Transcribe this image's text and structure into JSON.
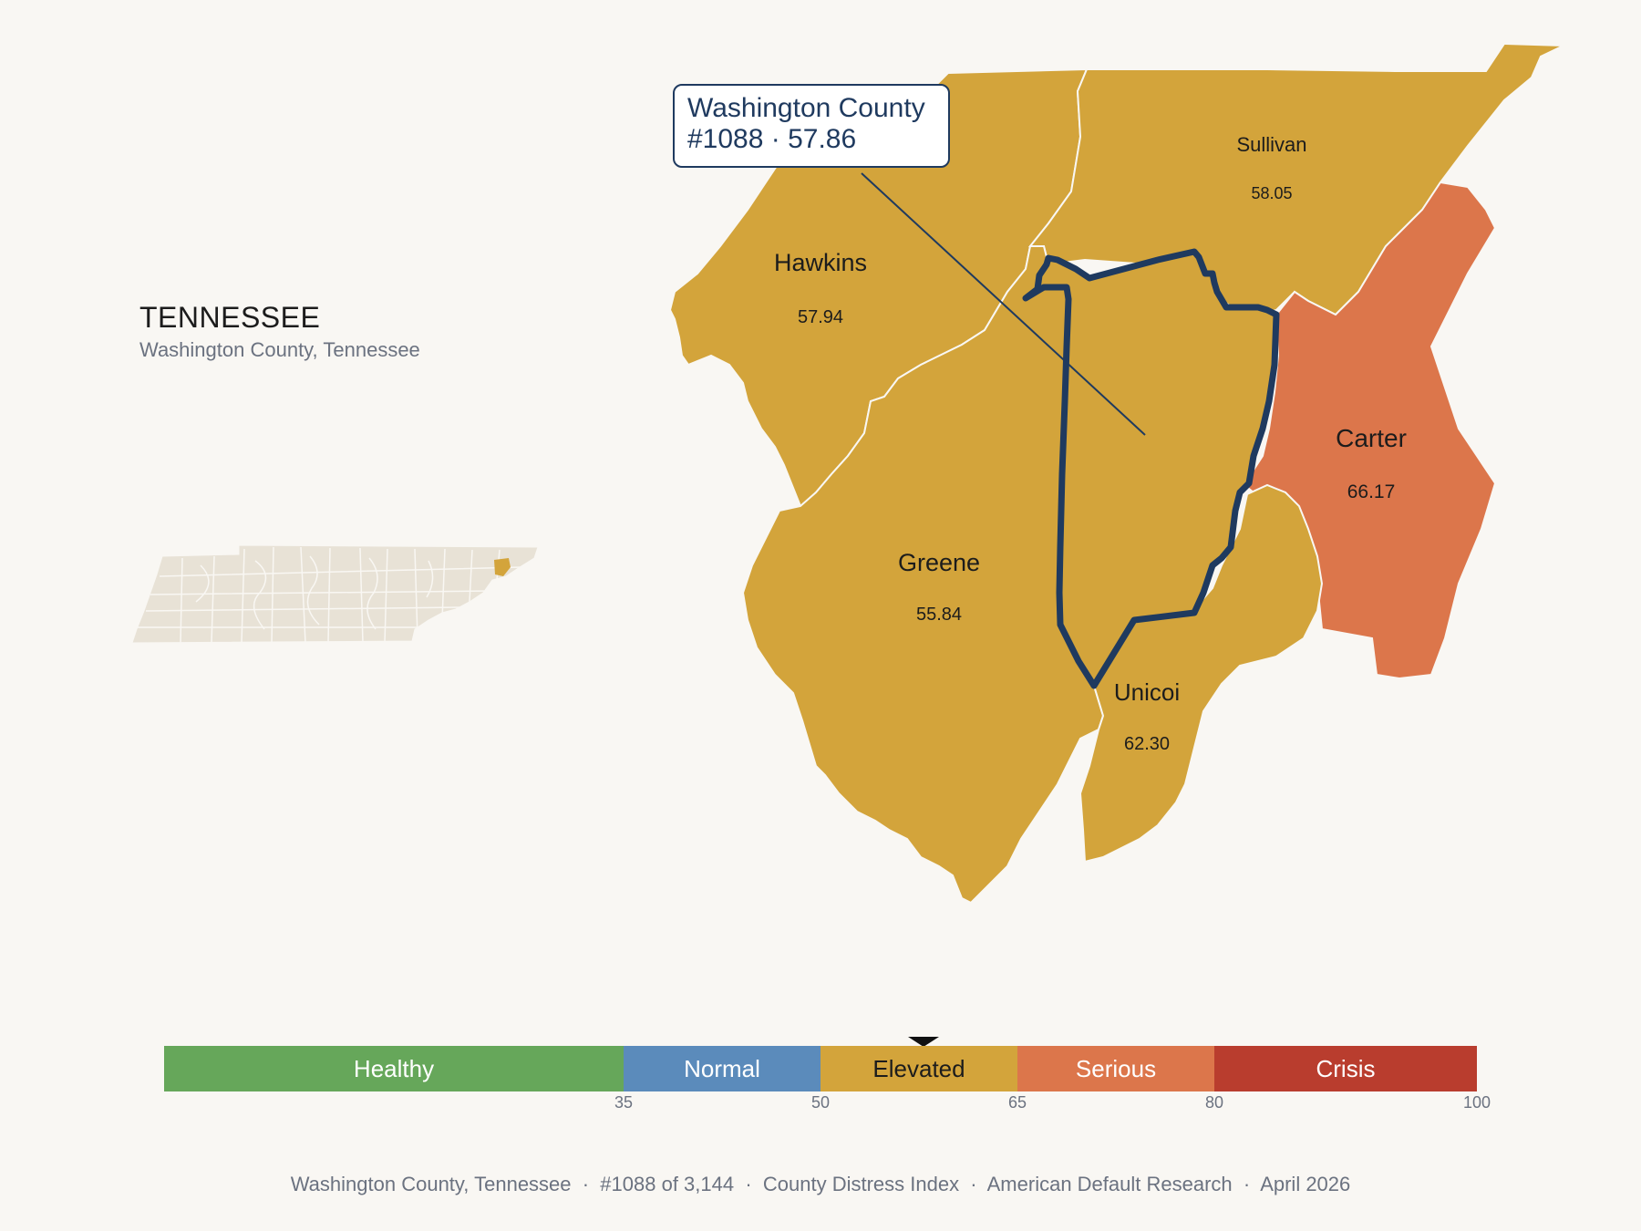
{
  "header": {
    "state": "TENNESSEE",
    "subtitle": "Washington County, Tennessee"
  },
  "callout": {
    "line1": "Washington County",
    "line2": "#1088 · 57.86"
  },
  "counties": [
    {
      "id": "hawkins",
      "name": "Hawkins",
      "score": "57.94",
      "tier": "Elevated"
    },
    {
      "id": "sullivan",
      "name": "Sullivan",
      "score": "58.05",
      "tier": "Elevated"
    },
    {
      "id": "greene",
      "name": "Greene",
      "score": "55.84",
      "tier": "Elevated"
    },
    {
      "id": "unicoi",
      "name": "Unicoi",
      "score": "62.30",
      "tier": "Elevated"
    },
    {
      "id": "carter",
      "name": "Carter",
      "score": "66.17",
      "tier": "Serious"
    },
    {
      "id": "washington",
      "name": "Washington County",
      "score": "57.86",
      "tier": "Elevated",
      "rank": "#1088"
    }
  ],
  "legend": {
    "segments": [
      {
        "label": "Healthy",
        "from": 0,
        "to": 35,
        "color": "#66a75a"
      },
      {
        "label": "Normal",
        "from": 35,
        "to": 50,
        "color": "#5b8bbb"
      },
      {
        "label": "Elevated",
        "from": 50,
        "to": 65,
        "color": "#d3a43b"
      },
      {
        "label": "Serious",
        "from": 65,
        "to": 80,
        "color": "#dc764b"
      },
      {
        "label": "Crisis",
        "from": 80,
        "to": 100,
        "color": "#b93d2e"
      }
    ],
    "ticks": [
      "35",
      "50",
      "65",
      "80",
      "100"
    ],
    "marker_value": 57.86
  },
  "colors": {
    "elevated": "#d3a43b",
    "serious": "#dc764b",
    "highlight": "#1f3a5f",
    "inset": "#e8e2d6"
  },
  "footer": "Washington County, Tennessee  ·  #1088 of 3,144  ·  County Distress Index  ·  American Default Research  ·  April 2026"
}
